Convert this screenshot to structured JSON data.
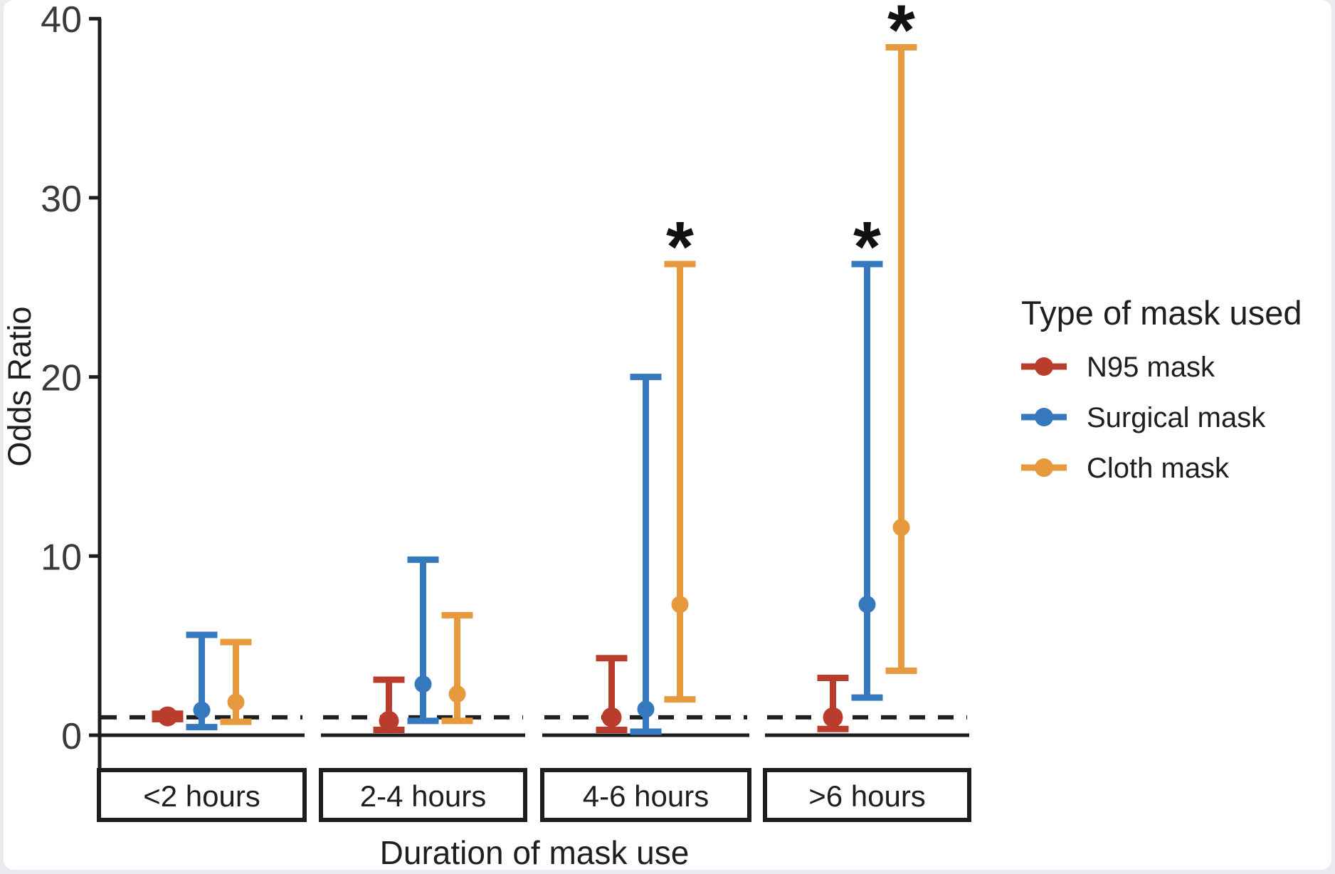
{
  "figure": {
    "page_background": "#e9ebee",
    "panel_background": "#ffffff",
    "ink_color": "#1e1e1e",
    "tick_text_color": "#3a3a3a"
  },
  "chart_data": {
    "type": "grouped_error_bar",
    "title": "",
    "xlabel": "Duration of mask use",
    "ylabel": "Odds Ratio",
    "y_ticks": [
      0,
      10,
      20,
      30,
      40
    ],
    "ylim": [
      0,
      40
    ],
    "grid": "off",
    "reference_line": {
      "value": 1,
      "style": "dashed",
      "color": "#1e1e1e"
    },
    "categories": [
      "<2 hours",
      "2-4 hours",
      "4-6 hours",
      ">6 hours"
    ],
    "significance_marker": "*",
    "legend": {
      "title": "Type of mask used",
      "position": "right",
      "items": [
        {
          "label": "N95 mask",
          "color": "#ba3c2c"
        },
        {
          "label": "Surgical mask",
          "color": "#3578be"
        },
        {
          "label": "Cloth mask",
          "color": "#e6993d"
        }
      ]
    },
    "series": [
      {
        "name": "N95 mask",
        "color": "#ba3c2c",
        "values": [
          {
            "category": "<2 hours",
            "or": 1.05,
            "ci_low": 0.9,
            "ci_high": 1.2,
            "significant": false
          },
          {
            "category": "2-4 hours",
            "or": 0.8,
            "ci_low": 0.3,
            "ci_high": 3.1,
            "significant": false
          },
          {
            "category": "4-6 hours",
            "or": 1.0,
            "ci_low": 0.3,
            "ci_high": 4.3,
            "significant": false
          },
          {
            "category": ">6 hours",
            "or": 1.0,
            "ci_low": 0.35,
            "ci_high": 3.2,
            "significant": false
          }
        ]
      },
      {
        "name": "Surgical mask",
        "color": "#3578be",
        "values": [
          {
            "category": "<2 hours",
            "or": 1.4,
            "ci_low": 0.45,
            "ci_high": 5.6,
            "significant": false
          },
          {
            "category": "2-4 hours",
            "or": 2.85,
            "ci_low": 0.8,
            "ci_high": 9.8,
            "significant": false
          },
          {
            "category": "4-6 hours",
            "or": 1.45,
            "ci_low": 0.2,
            "ci_high": 20.0,
            "significant": false
          },
          {
            "category": ">6 hours",
            "or": 7.3,
            "ci_low": 2.1,
            "ci_high": 26.3,
            "significant": true
          }
        ]
      },
      {
        "name": "Cloth mask",
        "color": "#e6993d",
        "values": [
          {
            "category": "<2 hours",
            "or": 1.85,
            "ci_low": 0.75,
            "ci_high": 5.2,
            "significant": false
          },
          {
            "category": "2-4 hours",
            "or": 2.3,
            "ci_low": 0.8,
            "ci_high": 6.7,
            "significant": false
          },
          {
            "category": "4-6 hours",
            "or": 7.3,
            "ci_low": 2.0,
            "ci_high": 26.3,
            "significant": true
          },
          {
            "category": ">6 hours",
            "or": 11.6,
            "ci_low": 3.6,
            "ci_high": 38.4,
            "significant": true
          }
        ]
      }
    ]
  }
}
